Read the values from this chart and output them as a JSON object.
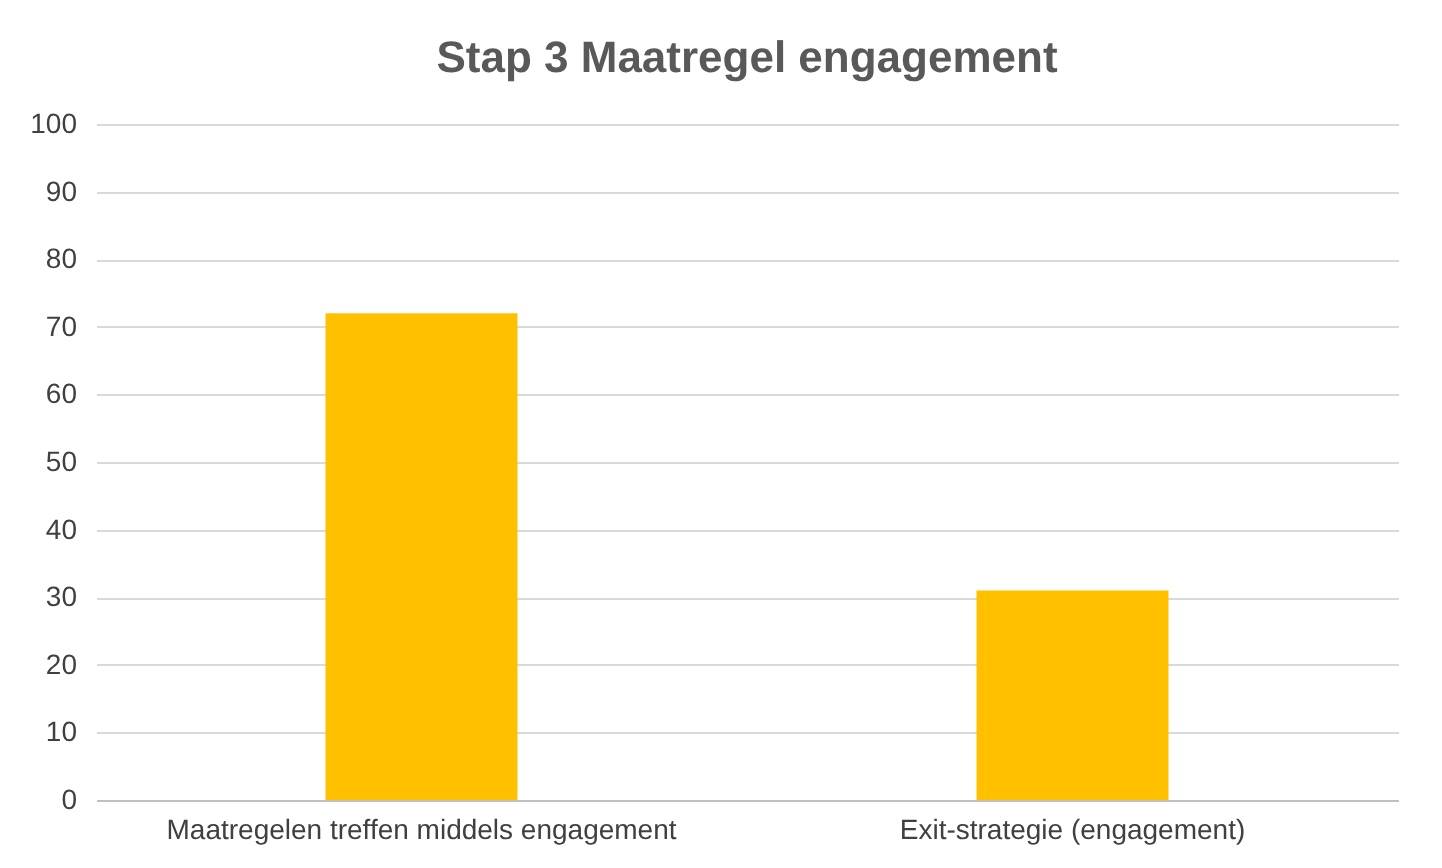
{
  "chart_data": {
    "type": "bar",
    "title": "Stap 3 Maatregel engagement",
    "categories": [
      "Maatregelen treffen middels engagement",
      "Exit-strategie (engagement)"
    ],
    "values": [
      72,
      31
    ],
    "color": "#ffc000",
    "ylim": [
      0,
      100
    ],
    "yticks": [
      0,
      10,
      20,
      30,
      40,
      50,
      60,
      70,
      80,
      90,
      100
    ],
    "grid": "y"
  }
}
